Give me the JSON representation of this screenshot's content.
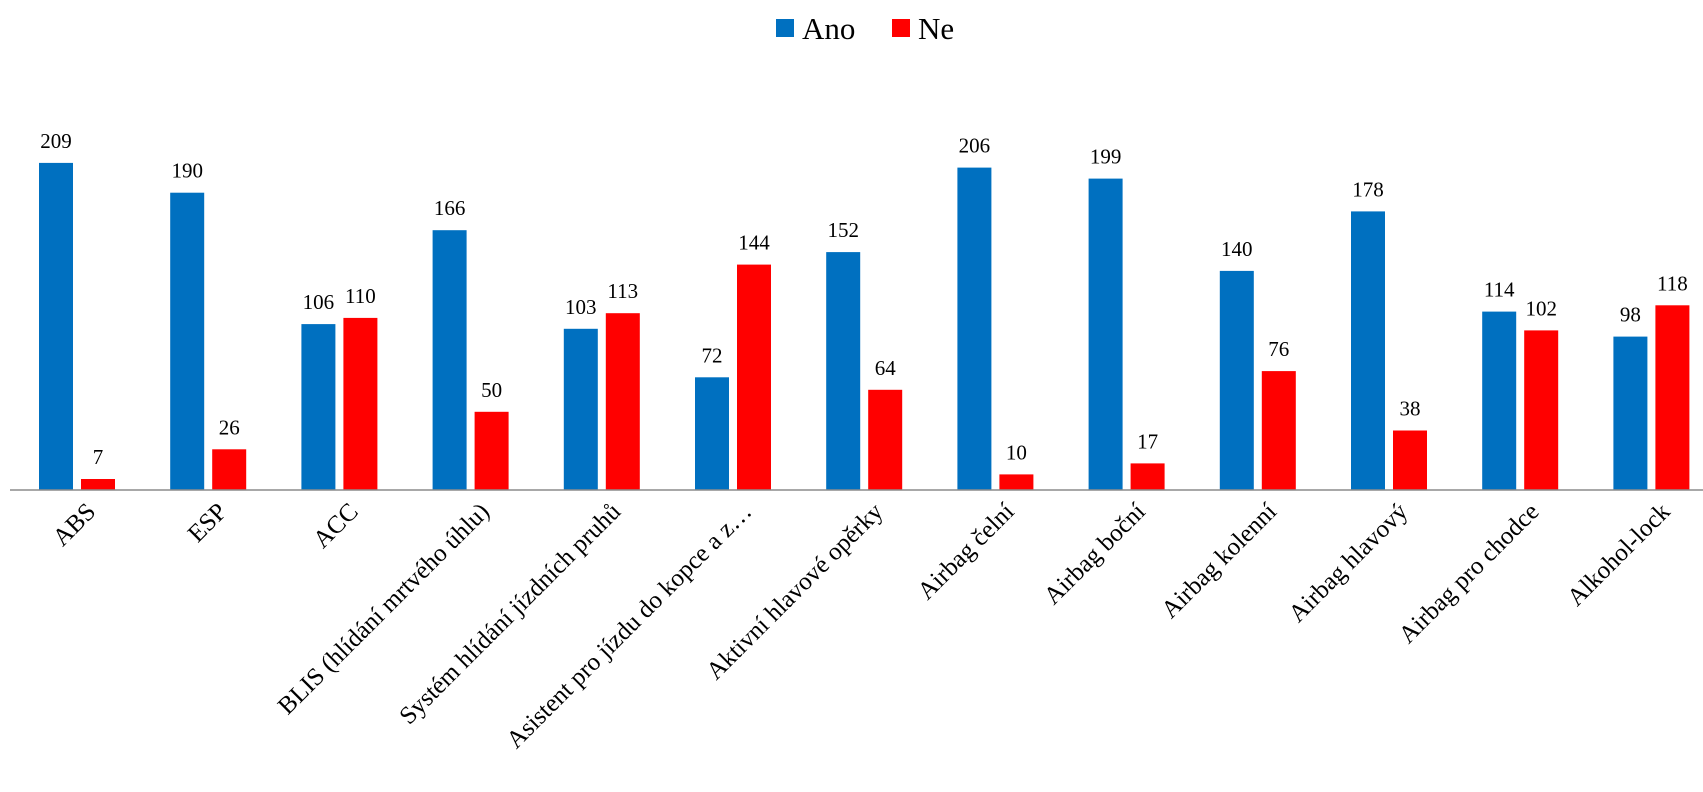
{
  "chart_data": {
    "type": "bar",
    "title": "",
    "xlabel": "",
    "ylabel": "",
    "ylim": [
      0,
      225
    ],
    "grid": false,
    "legend_position": "top-center",
    "data_labels": true,
    "categories": [
      "ABS",
      "ESP",
      "ACC",
      "BLIS (hlídání mrtvého úhlu)",
      "Systém hlídání jízdních pruhů",
      "Asistent pro jízdu do kopce a z…",
      "Aktivní hlavové opěrky",
      "Airbag čelní",
      "Airbag boční",
      "Airbag kolenní",
      "Airbag hlavový",
      "Airbag pro chodce",
      "Alkohol-lock"
    ],
    "series": [
      {
        "name": "Ano",
        "color": "#0070c0",
        "values": [
          209,
          190,
          106,
          166,
          103,
          72,
          152,
          206,
          199,
          140,
          178,
          114,
          98
        ]
      },
      {
        "name": "Ne",
        "color": "#ff0000",
        "values": [
          7,
          26,
          110,
          50,
          113,
          144,
          64,
          10,
          17,
          76,
          38,
          102,
          118
        ]
      }
    ]
  }
}
